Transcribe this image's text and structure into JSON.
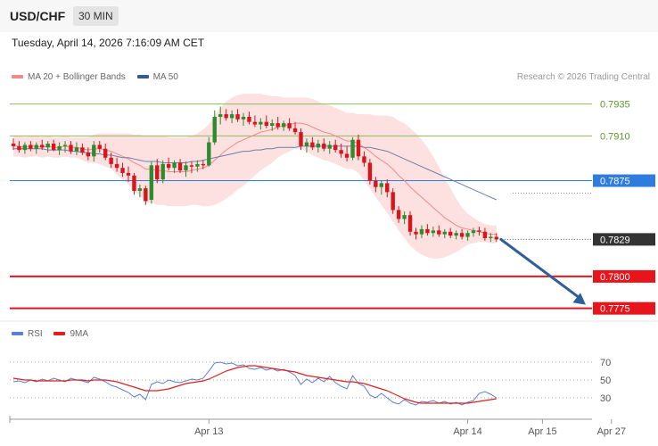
{
  "header": {
    "symbol": "USD/CHF",
    "timeframe": "30 MIN"
  },
  "datetime": "Tuesday, April 14, 2026 7:16:09 AM CET",
  "legend": {
    "main": [
      {
        "label": "MA 20 + Bollinger Bands",
        "color": "#f08a8a"
      },
      {
        "label": "MA 50",
        "color": "#355a8c"
      }
    ],
    "rsi": [
      {
        "label": "RSI",
        "color": "#5b7fd6"
      },
      {
        "label": "9MA",
        "color": "#e0201c"
      }
    ]
  },
  "credit": "Research © 2026 Trading Central",
  "colors": {
    "up": "#2e8b2e",
    "down": "#d8141c",
    "ma20": "#f08a8a",
    "band": "#fde0e0",
    "ma50": "#6d7faa",
    "arrow": "#2f5f9a"
  },
  "chart_data": {
    "type": "candlestick",
    "price_range": [
      0.7765,
      0.7955
    ],
    "levels": [
      {
        "value": 0.7935,
        "label": "0.7935",
        "kind": "target",
        "color": "#8dbb5e"
      },
      {
        "value": 0.791,
        "label": "0.7910",
        "kind": "target",
        "color": "#8dbb5e"
      },
      {
        "value": 0.7875,
        "label": "0.7875",
        "kind": "pivot",
        "color": "#2f7be0"
      },
      {
        "value": 0.7829,
        "label": "0.7829",
        "kind": "last",
        "color": "#333333"
      },
      {
        "value": 0.78,
        "label": "0.7800",
        "kind": "support",
        "color": "#e8141c"
      },
      {
        "value": 0.7775,
        "label": "0.7775",
        "kind": "support",
        "color": "#e8141c"
      }
    ],
    "candles": [
      [
        0.7904,
        0.7908,
        0.7899,
        0.7902
      ],
      [
        0.7902,
        0.7906,
        0.7897,
        0.7899
      ],
      [
        0.7899,
        0.7905,
        0.7896,
        0.7903
      ],
      [
        0.7903,
        0.7906,
        0.7898,
        0.79
      ],
      [
        0.79,
        0.7905,
        0.7896,
        0.7903
      ],
      [
        0.7903,
        0.7907,
        0.7899,
        0.7901
      ],
      [
        0.7901,
        0.7906,
        0.7897,
        0.7904
      ],
      [
        0.7904,
        0.7907,
        0.7898,
        0.7899
      ],
      [
        0.7899,
        0.7905,
        0.7895,
        0.7902
      ],
      [
        0.7902,
        0.7906,
        0.7897,
        0.7903
      ],
      [
        0.7903,
        0.7906,
        0.7896,
        0.7898
      ],
      [
        0.7898,
        0.7905,
        0.7895,
        0.7901
      ],
      [
        0.7901,
        0.7904,
        0.7895,
        0.7897
      ],
      [
        0.7897,
        0.7901,
        0.7891,
        0.7894
      ],
      [
        0.7894,
        0.7906,
        0.789,
        0.7903
      ],
      [
        0.7903,
        0.7906,
        0.7897,
        0.79
      ],
      [
        0.79,
        0.7904,
        0.7891,
        0.7893
      ],
      [
        0.7893,
        0.7897,
        0.7885,
        0.7888
      ],
      [
        0.7888,
        0.7893,
        0.7882,
        0.7885
      ],
      [
        0.7885,
        0.7889,
        0.7878,
        0.7881
      ],
      [
        0.7881,
        0.7886,
        0.7874,
        0.7879
      ],
      [
        0.7879,
        0.7881,
        0.7864,
        0.7867
      ],
      [
        0.7867,
        0.7872,
        0.7862,
        0.7869
      ],
      [
        0.7869,
        0.7871,
        0.7856,
        0.7859
      ],
      [
        0.786,
        0.789,
        0.7857,
        0.7887
      ],
      [
        0.7887,
        0.7892,
        0.7873,
        0.7876
      ],
      [
        0.7876,
        0.7891,
        0.7873,
        0.7888
      ],
      [
        0.7888,
        0.7893,
        0.7883,
        0.7885
      ],
      [
        0.7885,
        0.7891,
        0.7881,
        0.7889
      ],
      [
        0.7889,
        0.7892,
        0.7881,
        0.7883
      ],
      [
        0.7883,
        0.789,
        0.7878,
        0.7887
      ],
      [
        0.7887,
        0.789,
        0.7881,
        0.7886
      ],
      [
        0.7886,
        0.7891,
        0.7882,
        0.7888
      ],
      [
        0.7888,
        0.7891,
        0.7884,
        0.7887
      ],
      [
        0.7887,
        0.7909,
        0.7886,
        0.7905
      ],
      [
        0.7905,
        0.793,
        0.7903,
        0.7925
      ],
      [
        0.7925,
        0.7933,
        0.7919,
        0.7927
      ],
      [
        0.7927,
        0.7931,
        0.7922,
        0.7924
      ],
      [
        0.7924,
        0.793,
        0.792,
        0.7927
      ],
      [
        0.7927,
        0.7931,
        0.7921,
        0.7923
      ],
      [
        0.7923,
        0.7928,
        0.7918,
        0.7925
      ],
      [
        0.7925,
        0.7929,
        0.7919,
        0.7921
      ],
      [
        0.7921,
        0.7926,
        0.7917,
        0.7919
      ],
      [
        0.7919,
        0.7924,
        0.7915,
        0.7921
      ],
      [
        0.7921,
        0.7926,
        0.7916,
        0.7918
      ],
      [
        0.7918,
        0.7923,
        0.7914,
        0.792
      ],
      [
        0.792,
        0.7925,
        0.7915,
        0.7917
      ],
      [
        0.7917,
        0.7922,
        0.7914,
        0.792
      ],
      [
        0.792,
        0.7924,
        0.7914,
        0.7916
      ],
      [
        0.7916,
        0.7921,
        0.7911,
        0.7913
      ],
      [
        0.7913,
        0.7916,
        0.7899,
        0.7902
      ],
      [
        0.7902,
        0.7908,
        0.7897,
        0.7905
      ],
      [
        0.7905,
        0.7909,
        0.7899,
        0.7901
      ],
      [
        0.7901,
        0.7907,
        0.7897,
        0.7904
      ],
      [
        0.7904,
        0.7908,
        0.7898,
        0.79
      ],
      [
        0.79,
        0.7906,
        0.7896,
        0.7903
      ],
      [
        0.7903,
        0.7907,
        0.7897,
        0.7899
      ],
      [
        0.7899,
        0.7904,
        0.7893,
        0.7896
      ],
      [
        0.7896,
        0.7902,
        0.789,
        0.7893
      ],
      [
        0.7893,
        0.7909,
        0.7891,
        0.7907
      ],
      [
        0.7907,
        0.7911,
        0.7891,
        0.7894
      ],
      [
        0.7894,
        0.7898,
        0.7886,
        0.7889
      ],
      [
        0.7889,
        0.7892,
        0.7872,
        0.7875
      ],
      [
        0.7875,
        0.7878,
        0.7866,
        0.787
      ],
      [
        0.787,
        0.7875,
        0.7864,
        0.7873
      ],
      [
        0.7873,
        0.7876,
        0.7862,
        0.7866
      ],
      [
        0.7866,
        0.7869,
        0.7849,
        0.7852
      ],
      [
        0.7852,
        0.7855,
        0.7842,
        0.7845
      ],
      [
        0.7845,
        0.7851,
        0.7841,
        0.7848
      ],
      [
        0.7848,
        0.7851,
        0.7832,
        0.7835
      ],
      [
        0.7835,
        0.7838,
        0.7829,
        0.7833
      ],
      [
        0.7833,
        0.784,
        0.783,
        0.7837
      ],
      [
        0.7837,
        0.7841,
        0.7832,
        0.7834
      ],
      [
        0.7834,
        0.7839,
        0.7831,
        0.7836
      ],
      [
        0.7836,
        0.784,
        0.7831,
        0.7833
      ],
      [
        0.7833,
        0.7837,
        0.783,
        0.7835
      ],
      [
        0.7835,
        0.7838,
        0.783,
        0.7832
      ],
      [
        0.7832,
        0.7836,
        0.7829,
        0.7834
      ],
      [
        0.7834,
        0.7837,
        0.7829,
        0.7831
      ],
      [
        0.7831,
        0.7836,
        0.7828,
        0.7834
      ],
      [
        0.7834,
        0.7838,
        0.7831,
        0.7836
      ],
      [
        0.7836,
        0.7839,
        0.7832,
        0.7835
      ],
      [
        0.7835,
        0.7838,
        0.7828,
        0.783
      ],
      [
        0.783,
        0.7834,
        0.7827,
        0.7831
      ],
      [
        0.7831,
        0.7834,
        0.7827,
        0.7829
      ]
    ],
    "ma20": [
      0.7902,
      0.7902,
      0.7901,
      0.7902,
      0.7902,
      0.7901,
      0.7902,
      0.7901,
      0.7901,
      0.7902,
      0.7901,
      0.7901,
      0.79,
      0.7899,
      0.79,
      0.79,
      0.7899,
      0.7898,
      0.7896,
      0.7894,
      0.7892,
      0.7889,
      0.7887,
      0.7884,
      0.7884,
      0.7883,
      0.7883,
      0.7882,
      0.7882,
      0.7882,
      0.7882,
      0.7883,
      0.7884,
      0.7885,
      0.7887,
      0.7891,
      0.7895,
      0.7899,
      0.7902,
      0.7905,
      0.7907,
      0.7909,
      0.7911,
      0.7913,
      0.7914,
      0.7915,
      0.7917,
      0.7918,
      0.7919,
      0.792,
      0.792,
      0.7919,
      0.7917,
      0.7915,
      0.7913,
      0.7912,
      0.791,
      0.7908,
      0.7906,
      0.7906,
      0.7904,
      0.7901,
      0.7898,
      0.7894,
      0.7891,
      0.7888,
      0.7884,
      0.7879,
      0.7875,
      0.787,
      0.7866,
      0.7862,
      0.7858,
      0.7854,
      0.785,
      0.7846,
      0.7843,
      0.784,
      0.7838,
      0.7837,
      0.7836,
      0.7835,
      0.7834,
      0.7833,
      0.7833
    ],
    "ma50": [
      0.79,
      0.79,
      0.79,
      0.79,
      0.79,
      0.79,
      0.7899,
      0.7899,
      0.7899,
      0.7899,
      0.7898,
      0.7898,
      0.7897,
      0.7897,
      0.7896,
      0.7896,
      0.7895,
      0.7895,
      0.7894,
      0.7893,
      0.7893,
      0.7892,
      0.7891,
      0.789,
      0.789,
      0.789,
      0.7889,
      0.7889,
      0.7889,
      0.7889,
      0.7889,
      0.789,
      0.789,
      0.7891,
      0.7892,
      0.7893,
      0.7894,
      0.7895,
      0.7896,
      0.7897,
      0.7898,
      0.7898,
      0.7899,
      0.7899,
      0.79,
      0.79,
      0.7901,
      0.7901,
      0.7901,
      0.7901,
      0.7902,
      0.7902,
      0.7902,
      0.7902,
      0.7902,
      0.7902,
      0.7902,
      0.7902,
      0.7902,
      0.7902,
      0.7902,
      0.7901,
      0.7901,
      0.79,
      0.7899,
      0.7898,
      0.7896,
      0.7894,
      0.7892,
      0.789,
      0.7888,
      0.7886,
      0.7884,
      0.7882,
      0.788,
      0.7878,
      0.7876,
      0.7874,
      0.7872,
      0.787,
      0.7868,
      0.7866,
      0.7864,
      0.7862,
      0.786
    ],
    "band_width": [
      0.0008,
      0.0008,
      0.0008,
      0.0008,
      0.0008,
      0.0008,
      0.0008,
      0.0008,
      0.0008,
      0.0008,
      0.0008,
      0.0008,
      0.0009,
      0.001,
      0.0011,
      0.0012,
      0.0013,
      0.0014,
      0.0016,
      0.0018,
      0.002,
      0.0022,
      0.0024,
      0.0026,
      0.0026,
      0.0027,
      0.0027,
      0.0027,
      0.0027,
      0.0027,
      0.0027,
      0.0027,
      0.0028,
      0.003,
      0.0032,
      0.0035,
      0.0037,
      0.0038,
      0.0038,
      0.0037,
      0.0036,
      0.0034,
      0.0032,
      0.003,
      0.0028,
      0.0026,
      0.0024,
      0.0022,
      0.0021,
      0.002,
      0.002,
      0.0021,
      0.0022,
      0.0022,
      0.0022,
      0.0022,
      0.0022,
      0.0022,
      0.0022,
      0.0022,
      0.0023,
      0.0026,
      0.0029,
      0.0032,
      0.0035,
      0.0038,
      0.0041,
      0.0043,
      0.0045,
      0.0046,
      0.0046,
      0.0045,
      0.0043,
      0.004,
      0.0036,
      0.0031,
      0.0026,
      0.0021,
      0.0016,
      0.0012,
      0.001,
      0.0008,
      0.0007,
      0.0007,
      0.0007
    ],
    "projection": {
      "from": 0.7829,
      "to": 0.7775
    },
    "rsi": {
      "range": [
        10,
        90
      ],
      "ticks": [
        70,
        50,
        30
      ],
      "rsi": [
        48,
        49,
        47,
        50,
        48,
        51,
        49,
        52,
        50,
        48,
        52,
        50,
        49,
        47,
        53,
        51,
        48,
        44,
        42,
        39,
        36,
        31,
        34,
        28,
        45,
        48,
        46,
        50,
        48,
        47,
        49,
        51,
        50,
        52,
        60,
        69,
        70,
        68,
        69,
        66,
        67,
        63,
        62,
        64,
        61,
        63,
        60,
        62,
        59,
        55,
        45,
        51,
        47,
        52,
        48,
        54,
        47,
        43,
        40,
        55,
        46,
        43,
        33,
        30,
        35,
        30,
        25,
        23,
        28,
        24,
        22,
        26,
        25,
        27,
        24,
        26,
        23,
        25,
        22,
        25,
        27,
        35,
        37,
        34,
        30
      ],
      "ma9": [
        52,
        51,
        50,
        50,
        49,
        49,
        49,
        49,
        49,
        49,
        50,
        50,
        50,
        49,
        50,
        50,
        50,
        49,
        48,
        46,
        44,
        42,
        40,
        38,
        38,
        38,
        39,
        40,
        42,
        44,
        46,
        47,
        48,
        49,
        51,
        54,
        57,
        60,
        62,
        64,
        65,
        66,
        66,
        65,
        64,
        63,
        62,
        61,
        60,
        59,
        57,
        55,
        54,
        53,
        52,
        51,
        50,
        49,
        48,
        48,
        47,
        46,
        44,
        42,
        40,
        38,
        35,
        32,
        29,
        27,
        25,
        24,
        24,
        24,
        24,
        24,
        24,
        24,
        24,
        24,
        25,
        26,
        27,
        28,
        29
      ]
    },
    "x_ticks": [
      {
        "index": 34,
        "label": "Apr 13"
      },
      {
        "index": 79,
        "label": "Apr 14"
      },
      {
        "index": 92,
        "label": "Apr 15"
      },
      {
        "index": 104,
        "label": "Apr 27"
      }
    ]
  }
}
